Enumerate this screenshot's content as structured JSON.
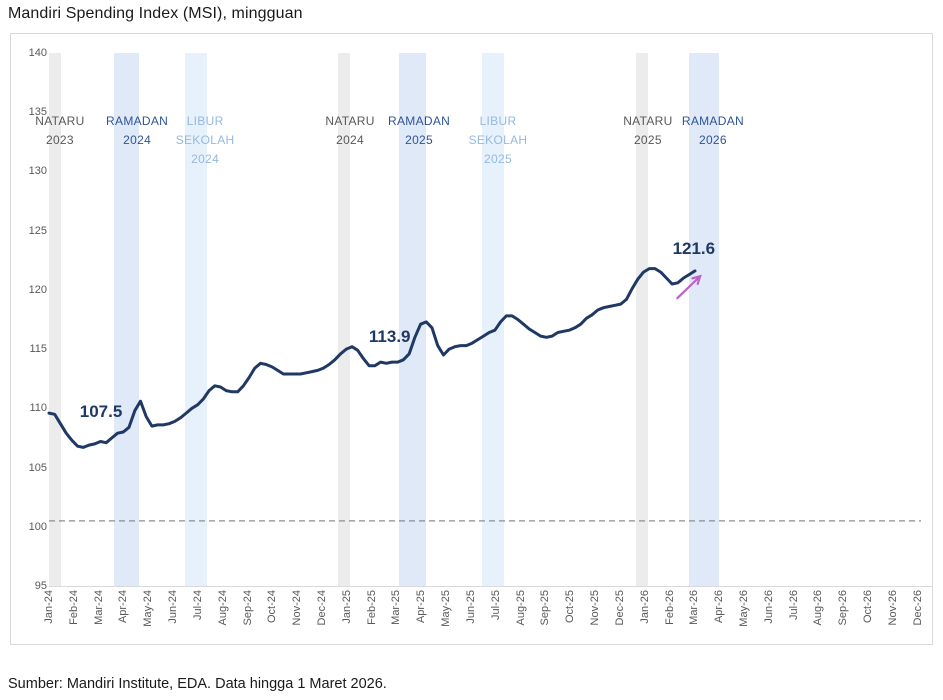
{
  "title": "Mandiri Spending Index (MSI), mingguan",
  "source": "Sumber: Mandiri Institute, EDA. Data hingga 1 Maret 2026.",
  "colors": {
    "line": "#1f3864",
    "annotation": "#1f3864",
    "band_nataru": "#ececec",
    "band_ramadan": "#dfe9f7",
    "band_libur": "#e6f1fb",
    "label_nataru": "#595959",
    "label_ramadan": "#2f5496",
    "label_libur": "#94b9e0",
    "axis_text": "#595959",
    "baseline_dash": "#8c8c94",
    "arrow": "#bf60c7",
    "frame_border": "#d9d9d9"
  },
  "chart_data": {
    "type": "line",
    "title": "Mandiri Spending Index (MSI), mingguan",
    "frequency": "weekly",
    "x_start_label": "Jan-24",
    "x_end_label": "Mar-26",
    "ylim": [
      95,
      140
    ],
    "y_ticks": [
      95,
      100,
      105,
      110,
      115,
      120,
      125,
      130,
      135,
      140
    ],
    "x_tick_labels": [
      "Jan-24",
      "Feb-24",
      "Mar-24",
      "Apr-24",
      "May-24",
      "Jun-24",
      "Jul-24",
      "Aug-24",
      "Sep-24",
      "Oct-24",
      "Nov-24",
      "Dec-24",
      "Jan-25",
      "Feb-25",
      "Mar-25",
      "Apr-25",
      "May-25",
      "Jun-25",
      "Jul-25",
      "Aug-25",
      "Sep-25",
      "Oct-25",
      "Nov-25",
      "Dec-25",
      "Jan-26",
      "Feb-26",
      "Mar-26",
      "Apr-26",
      "May-26",
      "Jun-26",
      "Jul-26",
      "Aug-26",
      "Sep-26",
      "Oct-26",
      "Nov-26",
      "Dec-26"
    ],
    "grid": false,
    "legend": false,
    "baseline_value": 100.5,
    "series": [
      {
        "name": "MSI mingguan",
        "weekly_values": [
          109.6,
          109.5,
          108.7,
          107.9,
          107.3,
          106.8,
          106.7,
          106.9,
          107.0,
          107.2,
          107.1,
          107.5,
          107.9,
          108.0,
          108.4,
          109.8,
          110.6,
          109.3,
          108.5,
          108.6,
          108.6,
          108.7,
          108.9,
          109.2,
          109.6,
          110.0,
          110.3,
          110.8,
          111.5,
          111.9,
          111.8,
          111.5,
          111.4,
          111.4,
          111.9,
          112.6,
          113.4,
          113.8,
          113.7,
          113.5,
          113.2,
          112.9,
          112.9,
          112.9,
          112.9,
          113.0,
          113.1,
          113.2,
          113.4,
          113.7,
          114.1,
          114.6,
          115.0,
          115.2,
          114.9,
          114.2,
          113.6,
          113.6,
          113.9,
          113.8,
          113.9,
          113.9,
          114.1,
          114.6,
          116.0,
          117.1,
          117.3,
          116.8,
          115.3,
          114.5,
          115.0,
          115.2,
          115.3,
          115.3,
          115.5,
          115.8,
          116.1,
          116.4,
          116.6,
          117.3,
          117.8,
          117.8,
          117.5,
          117.1,
          116.7,
          116.4,
          116.1,
          116.0,
          116.1,
          116.4,
          116.5,
          116.6,
          116.8,
          117.1,
          117.6,
          117.9,
          118.3,
          118.5,
          118.6,
          118.7,
          118.8,
          119.2,
          120.1,
          120.9,
          121.5,
          121.8,
          121.8,
          121.5,
          121.0,
          120.5,
          120.6,
          121.0,
          121.3,
          121.6
        ]
      }
    ],
    "events": [
      {
        "name": "NATARU",
        "year": "2023",
        "type": "nataru",
        "start_month": 0.0,
        "end_month": 0.48,
        "label_month": 0.44
      },
      {
        "name": "RAMADAN",
        "year": "2024",
        "type": "ramadan",
        "start_month": 2.62,
        "end_month": 3.63,
        "label_month": 3.55
      },
      {
        "name": "LIBUR SEKOLAH",
        "year": "2024",
        "type": "libur",
        "start_month": 5.48,
        "end_month": 6.37,
        "label_month": 6.29
      },
      {
        "name": "NATARU",
        "year": "2024",
        "type": "nataru",
        "start_month": 11.64,
        "end_month": 12.13,
        "label_month": 12.13
      },
      {
        "name": "RAMADAN",
        "year": "2025",
        "type": "ramadan",
        "start_month": 14.1,
        "end_month": 15.19,
        "label_month": 14.91
      },
      {
        "name": "LIBUR SEKOLAH",
        "year": "2025",
        "type": "libur",
        "start_month": 17.45,
        "end_month": 18.33,
        "label_month": 18.09
      },
      {
        "name": "NATARU",
        "year": "2025",
        "type": "nataru",
        "start_month": 23.65,
        "end_month": 24.13,
        "label_month": 24.13
      },
      {
        "name": "RAMADAN",
        "year": "2026",
        "type": "ramadan",
        "start_month": 25.79,
        "end_month": 27.0,
        "label_month": 26.75
      }
    ],
    "annotations": [
      {
        "text": "107.5",
        "week": 9.1,
        "value": 109.7
      },
      {
        "text": "113.9",
        "week": 59.6,
        "value": 116.0
      },
      {
        "text": "121.6",
        "week": 112.8,
        "value": 123.45
      }
    ],
    "arrow": {
      "from": {
        "week": 109.9,
        "value": 119.3
      },
      "to": {
        "week": 113.9,
        "value": 121.15
      }
    }
  }
}
